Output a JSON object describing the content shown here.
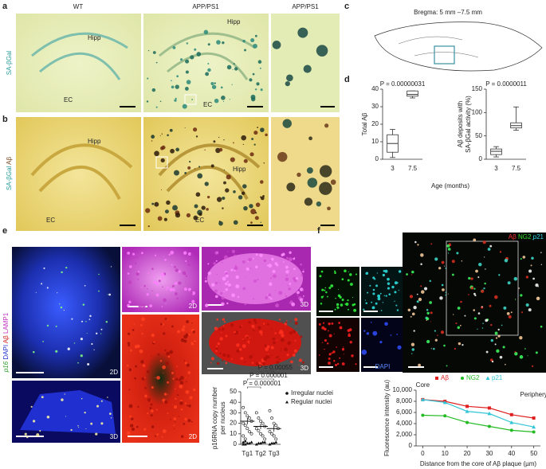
{
  "panel_letters": [
    "a",
    "b",
    "c",
    "d",
    "e",
    "f"
  ],
  "panel_a": {
    "column_titles": [
      "WT",
      "APP/PS1",
      "APP/PS1"
    ],
    "row_label": "SA-βGal",
    "region_labels": [
      "Hipp",
      "EC",
      "Hipp",
      "EC"
    ]
  },
  "panel_b": {
    "row_label": [
      "SA-βGal",
      "Aβ"
    ],
    "region_labels": [
      "Hipp",
      "EC",
      "Hipp",
      "EC"
    ]
  },
  "panel_c": {
    "label": "Bregma: 5 mm –7.5 mm"
  },
  "panel_d": {
    "x_label": "Age (months)"
  },
  "panel_e": {
    "channel_label": [
      "p16",
      "DAPI",
      "Aβ",
      "LAMP1"
    ],
    "image_labels": [
      "2D",
      "3D",
      "2D",
      "2D",
      "3D",
      "3D"
    ]
  },
  "panel_f": {
    "channel_label": [
      "Aβ",
      "NG2",
      "p21"
    ],
    "inset_label": "DAPI"
  },
  "chart_data": [
    {
      "type": "box",
      "y_label": [
        "Total Aβ"
      ],
      "annotation": "P = 0.00000031",
      "categories": [
        "3",
        "7.5"
      ],
      "boxes": [
        {
          "low": 1,
          "q1": 4,
          "median": 9,
          "q3": 14,
          "high": 17
        },
        {
          "low": 35,
          "q1": 36,
          "median": 37,
          "q3": 39,
          "high": 39
        }
      ],
      "ylim": [
        0,
        40
      ],
      "yticks": [
        0,
        10,
        20,
        30,
        40
      ],
      "color": "#ffffff"
    },
    {
      "type": "box",
      "y_label": [
        "Aβ deposits with",
        "SA-βGal activity (%)"
      ],
      "annotation": "P = 0.0000011",
      "categories": [
        "3",
        "7.5"
      ],
      "boxes": [
        {
          "low": 5,
          "q1": 10,
          "median": 17,
          "q3": 22,
          "high": 27
        },
        {
          "low": 62,
          "q1": 67,
          "median": 72,
          "q3": 78,
          "high": 112
        }
      ],
      "ylim": [
        0,
        150
      ],
      "yticks": [
        0,
        50,
        100,
        150
      ],
      "color": "#ffffff"
    },
    {
      "type": "dot",
      "y_label": [
        "p16RNA copy number",
        "per nucleus"
      ],
      "categories": [
        "Tg1",
        "Tg2",
        "Tg3"
      ],
      "annotations": [
        "P = 0.000001",
        "P = 0.000001",
        "P = 0.00055"
      ],
      "series": [
        {
          "name": "Irregular nuclei",
          "marker": "circle",
          "values": [
            [
              35,
              30,
              27,
              25,
              22,
              20,
              18,
              15,
              12,
              10,
              8,
              5
            ],
            [
              30,
              25,
              22,
              20,
              17,
              15,
              13,
              10,
              8,
              5
            ],
            [
              32,
              25,
              20,
              18,
              15,
              12,
              10,
              8,
              5
            ]
          ]
        },
        {
          "name": "Regular nuclei",
          "marker": "triangle",
          "values": [
            [
              0,
              0,
              1,
              1,
              2,
              2,
              3
            ],
            [
              0,
              1,
              1,
              2,
              2
            ],
            [
              0,
              1,
              1,
              2
            ]
          ]
        }
      ],
      "means": [
        22,
        17,
        15
      ],
      "errors": [
        3,
        2.5,
        3
      ],
      "ylim": [
        0,
        50
      ],
      "yticks": [
        0,
        10,
        20,
        30,
        40,
        50
      ]
    },
    {
      "type": "line",
      "y_label": [
        "Fluorescence intensity (au)"
      ],
      "x_label": "Distance from the core of Aβ plaque (µm)",
      "annotations": [
        "Core",
        "Periphery"
      ],
      "x": [
        0,
        10,
        20,
        30,
        40,
        50
      ],
      "series": [
        {
          "name": "Aβ",
          "color": "#e02020",
          "marker": "square",
          "values": [
            8300,
            8000,
            7100,
            6800,
            5600,
            5000
          ]
        },
        {
          "name": "NG2",
          "color": "#22bb22",
          "marker": "circle",
          "values": [
            5500,
            5400,
            4200,
            3500,
            2800,
            2500
          ]
        },
        {
          "name": "p21",
          "color": "#33c6d6",
          "marker": "triangle",
          "values": [
            8300,
            7800,
            6200,
            5800,
            4200,
            3400
          ]
        }
      ],
      "xlim": [
        -3,
        53
      ],
      "xticks": [
        0,
        10,
        20,
        30,
        40,
        50
      ],
      "ylim": [
        0,
        10000
      ],
      "yticks": [
        0,
        {
          "value": 2000,
          "label": "2,000"
        },
        {
          "value": 4000,
          "label": "4,000"
        },
        {
          "value": 6000,
          "label": "6,000"
        },
        {
          "value": 8000,
          "label": "8,000"
        },
        {
          "value": 10000,
          "label": "10,000"
        }
      ]
    }
  ]
}
